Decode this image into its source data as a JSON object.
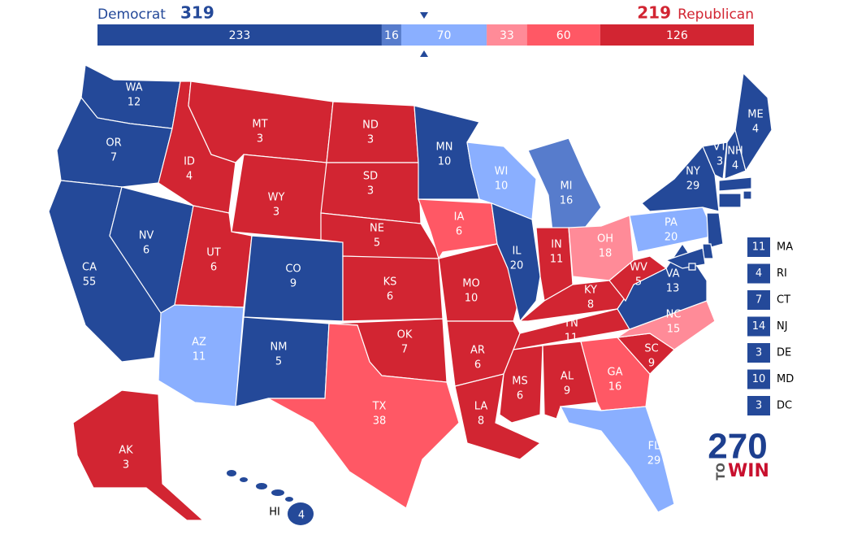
{
  "header": {
    "dem": {
      "label": "Democrat",
      "total": 319,
      "color": "#244999"
    },
    "rep": {
      "total": 219,
      "label": "Republican",
      "color": "#d22532"
    }
  },
  "bar": [
    {
      "value": 233,
      "color": "#244999"
    },
    {
      "value": 16,
      "color": "#577ccc"
    },
    {
      "value": 70,
      "color": "#8aafff"
    },
    {
      "value": 33,
      "color": "#ff8b98"
    },
    {
      "value": 60,
      "color": "#ff5865"
    },
    {
      "value": 126,
      "color": "#d22532"
    }
  ],
  "states": [
    {
      "abbr": "WA",
      "votes": 12,
      "color": "#244999"
    },
    {
      "abbr": "OR",
      "votes": 7,
      "color": "#244999"
    },
    {
      "abbr": "CA",
      "votes": 55,
      "color": "#244999"
    },
    {
      "abbr": "NV",
      "votes": 6,
      "color": "#244999"
    },
    {
      "abbr": "ID",
      "votes": 4,
      "color": "#d22532"
    },
    {
      "abbr": "MT",
      "votes": 3,
      "color": "#d22532"
    },
    {
      "abbr": "WY",
      "votes": 3,
      "color": "#d22532"
    },
    {
      "abbr": "UT",
      "votes": 6,
      "color": "#d22532"
    },
    {
      "abbr": "AZ",
      "votes": 11,
      "color": "#8aafff"
    },
    {
      "abbr": "CO",
      "votes": 9,
      "color": "#244999"
    },
    {
      "abbr": "NM",
      "votes": 5,
      "color": "#244999"
    },
    {
      "abbr": "ND",
      "votes": 3,
      "color": "#d22532"
    },
    {
      "abbr": "SD",
      "votes": 3,
      "color": "#d22532"
    },
    {
      "abbr": "NE",
      "votes": 5,
      "color": "#d22532"
    },
    {
      "abbr": "KS",
      "votes": 6,
      "color": "#d22532"
    },
    {
      "abbr": "OK",
      "votes": 7,
      "color": "#d22532"
    },
    {
      "abbr": "TX",
      "votes": 38,
      "color": "#ff5865"
    },
    {
      "abbr": "MN",
      "votes": 10,
      "color": "#244999"
    },
    {
      "abbr": "IA",
      "votes": 6,
      "color": "#ff5865"
    },
    {
      "abbr": "MO",
      "votes": 10,
      "color": "#d22532"
    },
    {
      "abbr": "AR",
      "votes": 6,
      "color": "#d22532"
    },
    {
      "abbr": "LA",
      "votes": 8,
      "color": "#d22532"
    },
    {
      "abbr": "WI",
      "votes": 10,
      "color": "#8aafff"
    },
    {
      "abbr": "IL",
      "votes": 20,
      "color": "#244999"
    },
    {
      "abbr": "MI",
      "votes": 16,
      "color": "#577ccc"
    },
    {
      "abbr": "IN",
      "votes": 11,
      "color": "#d22532"
    },
    {
      "abbr": "OH",
      "votes": 18,
      "color": "#ff8b98"
    },
    {
      "abbr": "KY",
      "votes": 8,
      "color": "#d22532"
    },
    {
      "abbr": "TN",
      "votes": 11,
      "color": "#d22532"
    },
    {
      "abbr": "MS",
      "votes": 6,
      "color": "#d22532"
    },
    {
      "abbr": "AL",
      "votes": 9,
      "color": "#d22532"
    },
    {
      "abbr": "GA",
      "votes": 16,
      "color": "#ff5865"
    },
    {
      "abbr": "FL",
      "votes": 29,
      "color": "#8aafff"
    },
    {
      "abbr": "SC",
      "votes": 9,
      "color": "#d22532"
    },
    {
      "abbr": "NC",
      "votes": 15,
      "color": "#ff8b98"
    },
    {
      "abbr": "VA",
      "votes": 13,
      "color": "#244999"
    },
    {
      "abbr": "WV",
      "votes": 5,
      "color": "#d22532"
    },
    {
      "abbr": "PA",
      "votes": 20,
      "color": "#8aafff"
    },
    {
      "abbr": "NY",
      "votes": 29,
      "color": "#244999"
    },
    {
      "abbr": "VT",
      "votes": 3,
      "color": "#244999"
    },
    {
      "abbr": "NH",
      "votes": 4,
      "color": "#244999"
    },
    {
      "abbr": "ME",
      "votes": 4,
      "color": "#244999"
    },
    {
      "abbr": "AK",
      "votes": 3,
      "color": "#d22532"
    },
    {
      "abbr": "HI",
      "votes": 4,
      "color": "#244999"
    }
  ],
  "small_states": [
    {
      "abbr": "MA",
      "votes": 11,
      "color": "#244999"
    },
    {
      "abbr": "RI",
      "votes": 4,
      "color": "#244999"
    },
    {
      "abbr": "CT",
      "votes": 7,
      "color": "#244999"
    },
    {
      "abbr": "NJ",
      "votes": 14,
      "color": "#244999"
    },
    {
      "abbr": "DE",
      "votes": 3,
      "color": "#244999"
    },
    {
      "abbr": "MD",
      "votes": 10,
      "color": "#244999"
    },
    {
      "abbr": "DC",
      "votes": 3,
      "color": "#244999"
    }
  ],
  "logo": {
    "number": "270",
    "to": "TO",
    "win": "WIN"
  }
}
